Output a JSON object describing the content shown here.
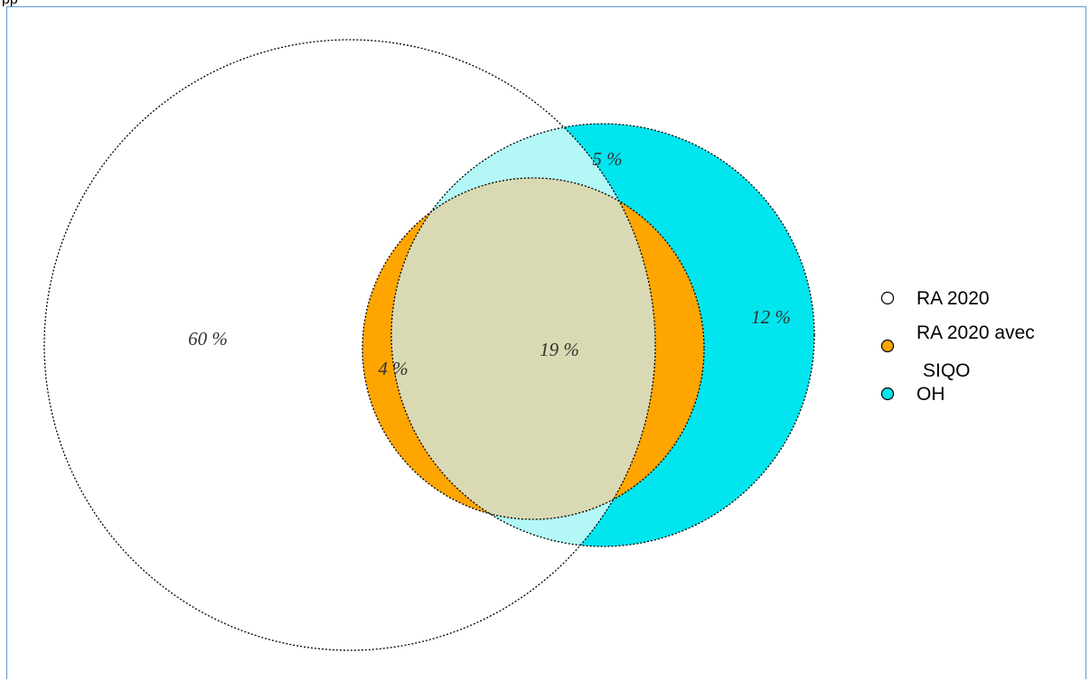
{
  "top_fragment": "pp",
  "venn": {
    "sets": [
      {
        "id": "ra2020",
        "legend_label": "RA 2020",
        "color": "#ffffff"
      },
      {
        "id": "siqo",
        "legend_label_line1": "RA 2020 avec",
        "legend_label_line2": "SIQO",
        "color": "#ffa500"
      },
      {
        "id": "oh",
        "legend_label": "OH",
        "color": "#00e5ee"
      }
    ],
    "region_colors": {
      "oh_only": "#00e5ee",
      "ra_and_oh": "#b3f7f7",
      "siqo_only": "#ffa500",
      "all_three": "#d9d9b3"
    },
    "regions": {
      "ra_only": "60 %",
      "siqo_only": "4 %",
      "all_three": "19 %",
      "ra_and_oh": "5 %",
      "oh_only": "12 %"
    }
  }
}
